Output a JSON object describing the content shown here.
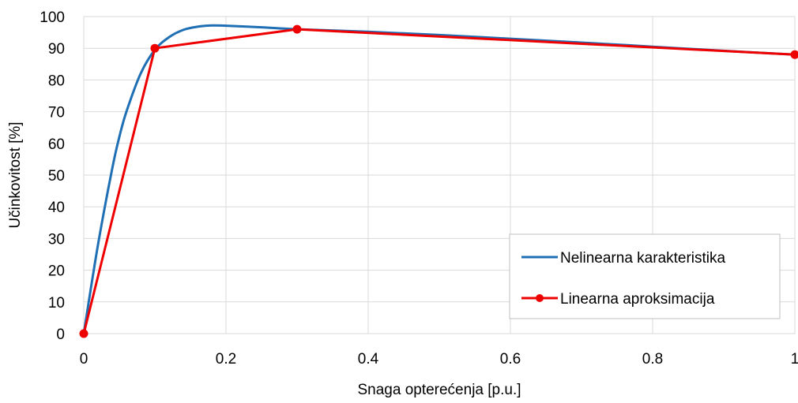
{
  "chart_data": {
    "type": "line",
    "xlabel": "Snaga opterećenja [p.u.]",
    "ylabel": "Učinkovitost [%]",
    "xlim": [
      0,
      1
    ],
    "ylim": [
      0,
      100
    ],
    "x_ticks": [
      0,
      0.2,
      0.4,
      0.6,
      0.8,
      1
    ],
    "x_tick_labels": [
      "0",
      "0.2",
      "0.4",
      "0.6",
      "0.8",
      "1"
    ],
    "y_ticks": [
      0,
      10,
      20,
      30,
      40,
      50,
      60,
      70,
      80,
      90,
      100
    ],
    "y_tick_labels": [
      "0",
      "10",
      "20",
      "30",
      "40",
      "50",
      "60",
      "70",
      "80",
      "90",
      "100"
    ],
    "grid": true,
    "legend_position": "bottom-right",
    "series": [
      {
        "name": "Nelinearna karakteristika",
        "color": "#1f6fb5",
        "marker": "none",
        "smooth": true,
        "x": [
          0,
          0.02,
          0.04,
          0.05,
          0.06,
          0.08,
          0.1,
          0.12,
          0.14,
          0.16,
          0.18,
          0.2,
          0.25,
          0.3,
          0.4,
          0.5,
          0.6,
          0.7,
          0.8,
          0.9,
          1.0
        ],
        "y": [
          0,
          28,
          52,
          62,
          70,
          82,
          89.5,
          93.5,
          95.8,
          96.8,
          97.2,
          97.1,
          96.6,
          96.0,
          95.2,
          94.2,
          93.0,
          91.8,
          90.5,
          89.2,
          88.0
        ]
      },
      {
        "name": "Linearna aproksimacija",
        "color": "#ee0000",
        "marker": "circle",
        "smooth": false,
        "x": [
          0,
          0.1,
          0.3,
          1.0
        ],
        "y": [
          0,
          90,
          96,
          88
        ]
      }
    ]
  }
}
